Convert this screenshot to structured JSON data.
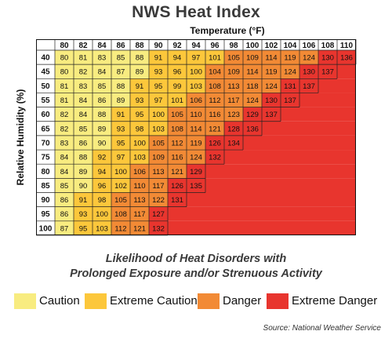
{
  "chart_data": {
    "type": "heatmap",
    "title": "NWS Heat Index",
    "xlabel": "Temperature (°F)",
    "ylabel": "Relative Humidity (%)",
    "x": [
      80,
      82,
      84,
      86,
      88,
      90,
      92,
      94,
      96,
      98,
      100,
      102,
      104,
      106,
      108,
      110
    ],
    "y": [
      40,
      45,
      50,
      55,
      60,
      65,
      70,
      75,
      80,
      85,
      90,
      95,
      100
    ],
    "values": [
      [
        80,
        81,
        83,
        85,
        88,
        91,
        94,
        97,
        101,
        105,
        109,
        114,
        119,
        124,
        130,
        136
      ],
      [
        80,
        82,
        84,
        87,
        89,
        93,
        96,
        100,
        104,
        109,
        114,
        119,
        124,
        130,
        137,
        null
      ],
      [
        81,
        83,
        85,
        88,
        91,
        95,
        99,
        103,
        108,
        113,
        118,
        124,
        131,
        137,
        null,
        null
      ],
      [
        81,
        84,
        86,
        89,
        93,
        97,
        101,
        106,
        112,
        117,
        124,
        130,
        137,
        null,
        null,
        null
      ],
      [
        82,
        84,
        88,
        91,
        95,
        100,
        105,
        110,
        116,
        123,
        129,
        137,
        null,
        null,
        null,
        null
      ],
      [
        82,
        85,
        89,
        93,
        98,
        103,
        108,
        114,
        121,
        128,
        136,
        null,
        null,
        null,
        null,
        null
      ],
      [
        83,
        86,
        90,
        95,
        100,
        105,
        112,
        119,
        126,
        134,
        null,
        null,
        null,
        null,
        null,
        null
      ],
      [
        84,
        88,
        92,
        97,
        103,
        109,
        116,
        124,
        132,
        null,
        null,
        null,
        null,
        null,
        null,
        null
      ],
      [
        84,
        89,
        94,
        100,
        106,
        113,
        121,
        129,
        null,
        null,
        null,
        null,
        null,
        null,
        null,
        null
      ],
      [
        85,
        90,
        96,
        102,
        110,
        117,
        126,
        135,
        null,
        null,
        null,
        null,
        null,
        null,
        null,
        null
      ],
      [
        86,
        91,
        98,
        105,
        113,
        122,
        131,
        null,
        null,
        null,
        null,
        null,
        null,
        null,
        null,
        null
      ],
      [
        86,
        93,
        100,
        108,
        117,
        127,
        null,
        null,
        null,
        null,
        null,
        null,
        null,
        null,
        null,
        null
      ],
      [
        87,
        95,
        103,
        112,
        121,
        132,
        null,
        null,
        null,
        null,
        null,
        null,
        null,
        null,
        null,
        null
      ]
    ],
    "bands": [
      {
        "label": "Caution",
        "min": 80,
        "max": 90,
        "color": "#f8ec80"
      },
      {
        "label": "Extreme Caution",
        "min": 91,
        "max": 103,
        "color": "#fcc73b"
      },
      {
        "label": "Danger",
        "min": 104,
        "max": 124,
        "color": "#f28a35"
      },
      {
        "label": "Extreme Danger",
        "min": 125,
        "max": 137,
        "color": "#e8352e"
      }
    ],
    "grid": true,
    "legend": "bottom"
  },
  "caption_line1": "Likelihood of Heat Disorders with",
  "caption_line2": "Prolonged Exposure and/or Strenuous Activity",
  "source": "Source: National Weather Service"
}
